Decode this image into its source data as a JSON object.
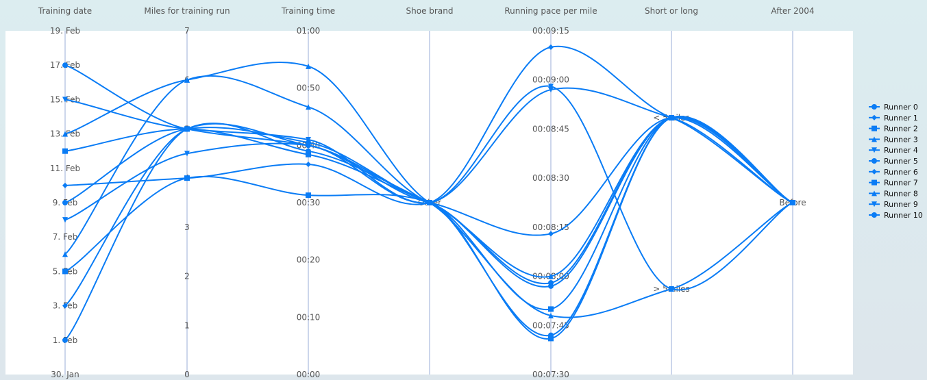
{
  "chart_data": {
    "type": "parallel-coordinates",
    "title": "",
    "axes": [
      {
        "name": "Training date",
        "kind": "date",
        "min": "Jan 30",
        "max": "Feb 19",
        "ticks": [
          "30. Jan",
          "1. Feb",
          "3. Feb",
          "5. Feb",
          "7. Feb",
          "9. Feb",
          "11. Feb",
          "13. Feb",
          "15. Feb",
          "17. Feb",
          "19. Feb"
        ]
      },
      {
        "name": "Miles for training run",
        "kind": "number",
        "min": 0,
        "max": 7,
        "ticks": [
          "0",
          "1",
          "2",
          "3",
          "4",
          "5",
          "6",
          "7"
        ]
      },
      {
        "name": "Training time",
        "kind": "minutes",
        "min": 0,
        "max": 60,
        "ticks": [
          "00:00",
          "00:10",
          "00:20",
          "00:30",
          "00:40",
          "00:50",
          "01:00"
        ]
      },
      {
        "name": "Shoe brand",
        "kind": "category",
        "categories": [
          "Other"
        ]
      },
      {
        "name": "Running pace per mile",
        "kind": "seconds",
        "min": 450,
        "max": 555,
        "ticks": [
          "00:07:30",
          "00:07:45",
          "00:08:00",
          "00:08:15",
          "00:08:30",
          "00:08:45",
          "00:09:00",
          "00:09:15"
        ]
      },
      {
        "name": "Short or long",
        "kind": "category2",
        "categories": [
          "> 5miles",
          "< 5miles"
        ]
      },
      {
        "name": "After 2004",
        "kind": "category",
        "categories": [
          "Before"
        ]
      }
    ],
    "series": [
      {
        "name": "Runner 0",
        "marker": "circle",
        "values": [
          "Feb 17",
          5,
          40,
          "Other",
          477,
          "< 5miles",
          "Before"
        ]
      },
      {
        "name": "Runner 1",
        "marker": "diamond",
        "values": [
          "Feb 10",
          4,
          36.7,
          "Other",
          550,
          "< 5miles",
          "Before"
        ]
      },
      {
        "name": "Runner 2",
        "marker": "square",
        "values": [
          "Feb 12",
          5,
          38.4,
          "Other",
          470,
          "< 5miles",
          "Before"
        ]
      },
      {
        "name": "Runner 3",
        "marker": "triangle",
        "values": [
          "Feb 13",
          6,
          53.8,
          "Other",
          468,
          "> 5miles",
          "Before"
        ]
      },
      {
        "name": "Runner 4",
        "marker": "triangle-down",
        "values": [
          "Feb 15",
          5,
          41,
          "Other",
          538,
          "> 5miles",
          "Before"
        ]
      },
      {
        "name": "Runner 5",
        "marker": "circle",
        "values": [
          "Feb 9",
          5,
          40.5,
          "Other",
          478,
          "< 5miles",
          "Before"
        ]
      },
      {
        "name": "Runner 6",
        "marker": "diamond",
        "values": [
          "Feb 3",
          5,
          40,
          "Other",
          493,
          "< 5miles",
          "Before"
        ]
      },
      {
        "name": "Runner 7",
        "marker": "square",
        "values": [
          "Feb 5",
          4,
          31.3,
          "Other",
          461,
          "< 5miles",
          "Before"
        ]
      },
      {
        "name": "Runner 8",
        "marker": "triangle",
        "values": [
          "Feb 6",
          6,
          46.7,
          "Other",
          480,
          "< 5miles",
          "Before"
        ]
      },
      {
        "name": "Runner 9",
        "marker": "triangle-down",
        "values": [
          "Feb 8",
          4.5,
          40,
          "Other",
          537,
          "< 5miles",
          "Before"
        ]
      },
      {
        "name": "Runner 10",
        "marker": "circle",
        "values": [
          "Feb 1",
          5,
          39,
          "Other",
          462,
          "< 5miles",
          "Before"
        ]
      }
    ],
    "color": "#0a7cf5",
    "axis_color": "#ccd6eb",
    "legend": "right"
  }
}
